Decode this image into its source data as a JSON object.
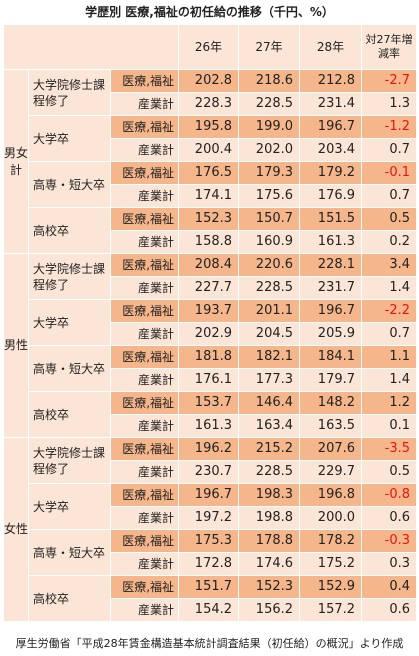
{
  "title": "学歴別 医療,福祉の初任給の推移（千円、%）",
  "headers": {
    "y26": "26年",
    "y27": "27年",
    "y28": "28年",
    "diff": "対27年増減率"
  },
  "groups": [
    {
      "label": "男女計",
      "edu": [
        {
          "label": "大学院修士課程修了",
          "med": {
            "cat": "医療,福祉",
            "y26": "202.8",
            "y27": "218.6",
            "y28": "212.8",
            "diff": "-2.7"
          },
          "all": {
            "cat": "産業計",
            "y26": "228.3",
            "y27": "228.5",
            "y28": "231.4",
            "diff": "1.3"
          }
        },
        {
          "label": "大学卒",
          "med": {
            "cat": "医療,福祉",
            "y26": "195.8",
            "y27": "199.0",
            "y28": "196.7",
            "diff": "-1.2"
          },
          "all": {
            "cat": "産業計",
            "y26": "200.4",
            "y27": "202.0",
            "y28": "203.4",
            "diff": "0.7"
          }
        },
        {
          "label": "高専・短大卒",
          "med": {
            "cat": "医療,福祉",
            "y26": "176.5",
            "y27": "179.3",
            "y28": "179.2",
            "diff": "-0.1"
          },
          "all": {
            "cat": "産業計",
            "y26": "174.1",
            "y27": "175.6",
            "y28": "176.9",
            "diff": "0.7"
          }
        },
        {
          "label": "高校卒",
          "med": {
            "cat": "医療,福祉",
            "y26": "152.3",
            "y27": "150.7",
            "y28": "151.5",
            "diff": "0.5"
          },
          "all": {
            "cat": "産業計",
            "y26": "158.8",
            "y27": "160.9",
            "y28": "161.3",
            "diff": "0.2"
          }
        }
      ]
    },
    {
      "label": "男性",
      "edu": [
        {
          "label": "大学院修士課程修了",
          "med": {
            "cat": "医療,福祉",
            "y26": "208.4",
            "y27": "220.6",
            "y28": "228.1",
            "diff": "3.4"
          },
          "all": {
            "cat": "産業計",
            "y26": "227.7",
            "y27": "228.5",
            "y28": "231.7",
            "diff": "1.4"
          }
        },
        {
          "label": "大学卒",
          "med": {
            "cat": "医療,福祉",
            "y26": "193.7",
            "y27": "201.1",
            "y28": "196.7",
            "diff": "-2.2"
          },
          "all": {
            "cat": "産業計",
            "y26": "202.9",
            "y27": "204.5",
            "y28": "205.9",
            "diff": "0.7"
          }
        },
        {
          "label": "高専・短大卒",
          "med": {
            "cat": "医療,福祉",
            "y26": "181.8",
            "y27": "182.1",
            "y28": "184.1",
            "diff": "1.1"
          },
          "all": {
            "cat": "産業計",
            "y26": "176.1",
            "y27": "177.3",
            "y28": "179.7",
            "diff": "1.4"
          }
        },
        {
          "label": "高校卒",
          "med": {
            "cat": "医療,福祉",
            "y26": "153.7",
            "y27": "146.4",
            "y28": "148.2",
            "diff": "1.2"
          },
          "all": {
            "cat": "産業計",
            "y26": "161.3",
            "y27": "163.4",
            "y28": "163.5",
            "diff": "0.1"
          }
        }
      ]
    },
    {
      "label": "女性",
      "edu": [
        {
          "label": "大学院修士課程修了",
          "med": {
            "cat": "医療,福祉",
            "y26": "196.2",
            "y27": "215.2",
            "y28": "207.6",
            "diff": "-3.5"
          },
          "all": {
            "cat": "産業計",
            "y26": "230.7",
            "y27": "228.5",
            "y28": "229.7",
            "diff": "0.5"
          }
        },
        {
          "label": "大学卒",
          "med": {
            "cat": "医療,福祉",
            "y26": "196.7",
            "y27": "198.3",
            "y28": "196.8",
            "diff": "-0.8"
          },
          "all": {
            "cat": "産業計",
            "y26": "197.2",
            "y27": "198.8",
            "y28": "200.0",
            "diff": "0.6"
          }
        },
        {
          "label": "高専・短大卒",
          "med": {
            "cat": "医療,福祉",
            "y26": "175.3",
            "y27": "178.8",
            "y28": "178.2",
            "diff": "-0.3"
          },
          "all": {
            "cat": "産業計",
            "y26": "172.8",
            "y27": "174.6",
            "y28": "175.2",
            "diff": "0.3"
          }
        },
        {
          "label": "高校卒",
          "med": {
            "cat": "医療,福祉",
            "y26": "151.7",
            "y27": "152.3",
            "y28": "152.9",
            "diff": "0.4"
          },
          "all": {
            "cat": "産業計",
            "y26": "154.2",
            "y27": "156.2",
            "y28": "157.2",
            "diff": "0.6"
          }
        }
      ]
    }
  ],
  "source": "厚生労働省「平成28年賃金構造基本統計調査結果（初任給）の概況」より作成",
  "colors": {
    "med_fill": "#f6b68b",
    "light_fill": "#fbe5d6",
    "negative": "#e8170e"
  }
}
